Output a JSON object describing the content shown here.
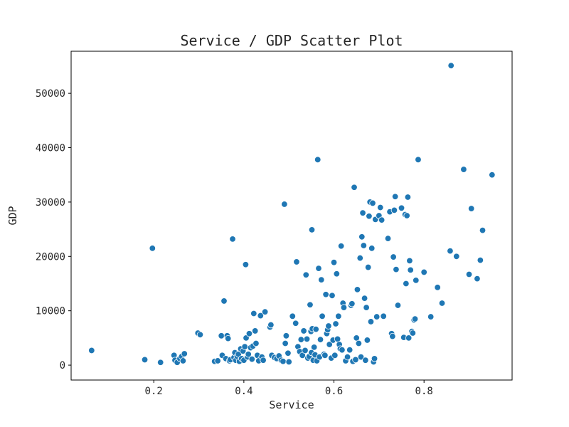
{
  "chart_data": {
    "type": "scatter",
    "title": "Service / GDP Scatter Plot",
    "xlabel": "Service",
    "ylabel": "GDP",
    "xlim": [
      0.0165,
      0.9955
    ],
    "ylim": [
      -2740,
      57740
    ],
    "xticks": [
      0.2,
      0.4,
      0.6,
      0.8
    ],
    "xtick_labels": [
      "0.2",
      "0.4",
      "0.6",
      "0.8"
    ],
    "yticks": [
      0,
      10000,
      20000,
      30000,
      40000,
      50000
    ],
    "ytick_labels": [
      "0",
      "10000",
      "20000",
      "30000",
      "40000",
      "50000"
    ],
    "grid": false,
    "legend": "none",
    "point_color": "#1f77b4",
    "series": [
      {
        "points": [
          [
            0.062,
            2700
          ],
          [
            0.18,
            1000
          ],
          [
            0.197,
            21500
          ],
          [
            0.215,
            500
          ],
          [
            0.245,
            1800
          ],
          [
            0.247,
            900
          ],
          [
            0.252,
            500
          ],
          [
            0.258,
            1200
          ],
          [
            0.262,
            1600
          ],
          [
            0.265,
            800
          ],
          [
            0.268,
            2100
          ],
          [
            0.298,
            5900
          ],
          [
            0.303,
            5600
          ],
          [
            0.335,
            700
          ],
          [
            0.342,
            800
          ],
          [
            0.35,
            5400
          ],
          [
            0.352,
            1800
          ],
          [
            0.356,
            11800
          ],
          [
            0.36,
            1200
          ],
          [
            0.363,
            5400
          ],
          [
            0.365,
            4900
          ],
          [
            0.368,
            800
          ],
          [
            0.37,
            1000
          ],
          [
            0.375,
            23200
          ],
          [
            0.378,
            1400
          ],
          [
            0.38,
            2300
          ],
          [
            0.382,
            900
          ],
          [
            0.385,
            1600
          ],
          [
            0.388,
            2000
          ],
          [
            0.39,
            700
          ],
          [
            0.393,
            3000
          ],
          [
            0.395,
            1200
          ],
          [
            0.398,
            2600
          ],
          [
            0.4,
            900
          ],
          [
            0.402,
            3400
          ],
          [
            0.404,
            18500
          ],
          [
            0.405,
            5000
          ],
          [
            0.408,
            1500
          ],
          [
            0.41,
            2000
          ],
          [
            0.412,
            5800
          ],
          [
            0.415,
            3200
          ],
          [
            0.418,
            1100
          ],
          [
            0.42,
            3500
          ],
          [
            0.422,
            9500
          ],
          [
            0.425,
            6300
          ],
          [
            0.427,
            4000
          ],
          [
            0.43,
            1800
          ],
          [
            0.433,
            800
          ],
          [
            0.437,
            9100
          ],
          [
            0.44,
            1500
          ],
          [
            0.443,
            900
          ],
          [
            0.447,
            9800
          ],
          [
            0.458,
            7000
          ],
          [
            0.46,
            7400
          ],
          [
            0.462,
            1800
          ],
          [
            0.468,
            1400
          ],
          [
            0.473,
            1200
          ],
          [
            0.478,
            1700
          ],
          [
            0.483,
            900
          ],
          [
            0.487,
            700
          ],
          [
            0.49,
            29600
          ],
          [
            0.492,
            4000
          ],
          [
            0.494,
            5400
          ],
          [
            0.498,
            2200
          ],
          [
            0.5,
            600
          ],
          [
            0.508,
            9000
          ],
          [
            0.515,
            7700
          ],
          [
            0.517,
            19000
          ],
          [
            0.52,
            3400
          ],
          [
            0.524,
            2500
          ],
          [
            0.527,
            4700
          ],
          [
            0.53,
            1800
          ],
          [
            0.533,
            6300
          ],
          [
            0.536,
            2700
          ],
          [
            0.538,
            16600
          ],
          [
            0.54,
            4800
          ],
          [
            0.542,
            1300
          ],
          [
            0.545,
            1600
          ],
          [
            0.547,
            11100
          ],
          [
            0.549,
            6200
          ],
          [
            0.55,
            2300
          ],
          [
            0.551,
            24900
          ],
          [
            0.552,
            6700
          ],
          [
            0.554,
            900
          ],
          [
            0.556,
            3300
          ],
          [
            0.558,
            1900
          ],
          [
            0.56,
            6600
          ],
          [
            0.562,
            800
          ],
          [
            0.564,
            37800
          ],
          [
            0.566,
            17800
          ],
          [
            0.568,
            1500
          ],
          [
            0.57,
            4700
          ],
          [
            0.572,
            15700
          ],
          [
            0.574,
            9000
          ],
          [
            0.578,
            2000
          ],
          [
            0.58,
            1800
          ],
          [
            0.582,
            13000
          ],
          [
            0.584,
            5800
          ],
          [
            0.586,
            6500
          ],
          [
            0.588,
            7200
          ],
          [
            0.59,
            3800
          ],
          [
            0.594,
            1300
          ],
          [
            0.596,
            12800
          ],
          [
            0.598,
            4600
          ],
          [
            0.6,
            18900
          ],
          [
            0.602,
            1800
          ],
          [
            0.604,
            7600
          ],
          [
            0.606,
            16800
          ],
          [
            0.608,
            4800
          ],
          [
            0.61,
            9000
          ],
          [
            0.612,
            3800
          ],
          [
            0.614,
            3000
          ],
          [
            0.616,
            21900
          ],
          [
            0.618,
            2800
          ],
          [
            0.62,
            11400
          ],
          [
            0.622,
            10600
          ],
          [
            0.626,
            800
          ],
          [
            0.63,
            1500
          ],
          [
            0.635,
            2800
          ],
          [
            0.638,
            11000
          ],
          [
            0.64,
            11300
          ],
          [
            0.642,
            700
          ],
          [
            0.645,
            32700
          ],
          [
            0.648,
            1000
          ],
          [
            0.65,
            5000
          ],
          [
            0.652,
            13900
          ],
          [
            0.655,
            4000
          ],
          [
            0.658,
            19700
          ],
          [
            0.66,
            1500
          ],
          [
            0.662,
            23600
          ],
          [
            0.664,
            28000
          ],
          [
            0.666,
            22000
          ],
          [
            0.668,
            12300
          ],
          [
            0.67,
            900
          ],
          [
            0.672,
            10600
          ],
          [
            0.674,
            4600
          ],
          [
            0.676,
            18000
          ],
          [
            0.678,
            27400
          ],
          [
            0.68,
            30000
          ],
          [
            0.682,
            8000
          ],
          [
            0.684,
            21500
          ],
          [
            0.686,
            29800
          ],
          [
            0.688,
            600
          ],
          [
            0.69,
            1200
          ],
          [
            0.692,
            26800
          ],
          [
            0.695,
            8900
          ],
          [
            0.7,
            27500
          ],
          [
            0.703,
            29000
          ],
          [
            0.706,
            26700
          ],
          [
            0.71,
            9000
          ],
          [
            0.72,
            23300
          ],
          [
            0.724,
            28200
          ],
          [
            0.728,
            5800
          ],
          [
            0.73,
            5300
          ],
          [
            0.732,
            19900
          ],
          [
            0.734,
            28500
          ],
          [
            0.736,
            31000
          ],
          [
            0.738,
            17600
          ],
          [
            0.742,
            11000
          ],
          [
            0.75,
            28900
          ],
          [
            0.755,
            5100
          ],
          [
            0.758,
            27700
          ],
          [
            0.76,
            15000
          ],
          [
            0.762,
            27500
          ],
          [
            0.764,
            30900
          ],
          [
            0.766,
            5000
          ],
          [
            0.768,
            19200
          ],
          [
            0.77,
            17500
          ],
          [
            0.773,
            6200
          ],
          [
            0.775,
            5900
          ],
          [
            0.778,
            8300
          ],
          [
            0.78,
            8500
          ],
          [
            0.782,
            15600
          ],
          [
            0.787,
            37800
          ],
          [
            0.8,
            17100
          ],
          [
            0.815,
            8900
          ],
          [
            0.83,
            14300
          ],
          [
            0.84,
            11400
          ],
          [
            0.858,
            21000
          ],
          [
            0.86,
            55100
          ],
          [
            0.872,
            20000
          ],
          [
            0.888,
            36000
          ],
          [
            0.9,
            16700
          ],
          [
            0.905,
            28800
          ],
          [
            0.918,
            15900
          ],
          [
            0.925,
            19300
          ],
          [
            0.93,
            24800
          ],
          [
            0.951,
            35000
          ]
        ]
      }
    ]
  }
}
